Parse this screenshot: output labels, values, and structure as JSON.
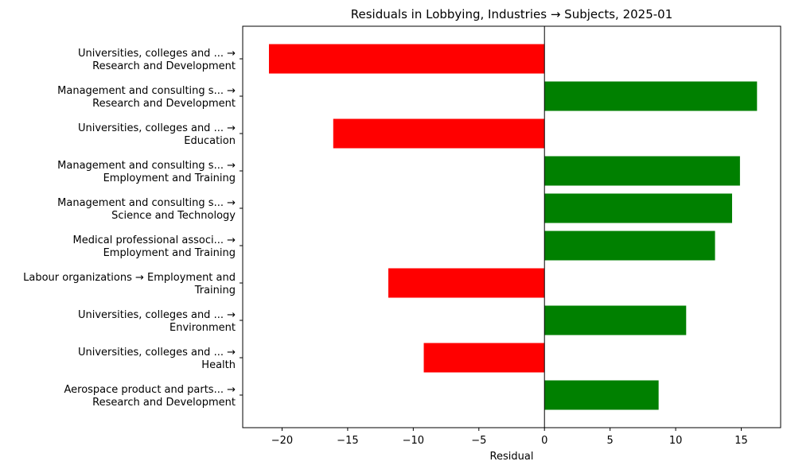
{
  "chart_data": {
    "type": "bar",
    "orientation": "horizontal",
    "title": "Residuals in Lobbying, Industries → Subjects, 2025-01",
    "xlabel": "Residual",
    "ylabel": "",
    "xlim": [
      -23,
      18
    ],
    "xticks": [
      -20,
      -15,
      -10,
      -5,
      0,
      5,
      10,
      15
    ],
    "xtick_labels": [
      "−20",
      "−15",
      "−10",
      "−5",
      "0",
      "5",
      "10",
      "15"
    ],
    "grid": false,
    "colors": {
      "positive": "#008000",
      "negative": "#ff0000",
      "zero_line": "#000000"
    },
    "categories": [
      [
        "Universities, colleges and ... →",
        "Research and Development"
      ],
      [
        "Management and consulting s... →",
        "Research and Development"
      ],
      [
        "Universities, colleges and ... →",
        "Education"
      ],
      [
        "Management and consulting s... →",
        "Employment and Training"
      ],
      [
        "Management and consulting s... →",
        "Science and Technology"
      ],
      [
        "Medical professional associ... →",
        "Employment and Training"
      ],
      [
        "Labour organizations → Employment and",
        "Training"
      ],
      [
        "Universities, colleges and ... →",
        "Environment"
      ],
      [
        "Universities, colleges and ... →",
        "Health"
      ],
      [
        "Aerospace product and parts... →",
        "Research and Development"
      ]
    ],
    "values": [
      -21.0,
      16.2,
      -16.1,
      14.9,
      14.3,
      13.0,
      -11.9,
      10.8,
      -9.2,
      8.7
    ]
  }
}
